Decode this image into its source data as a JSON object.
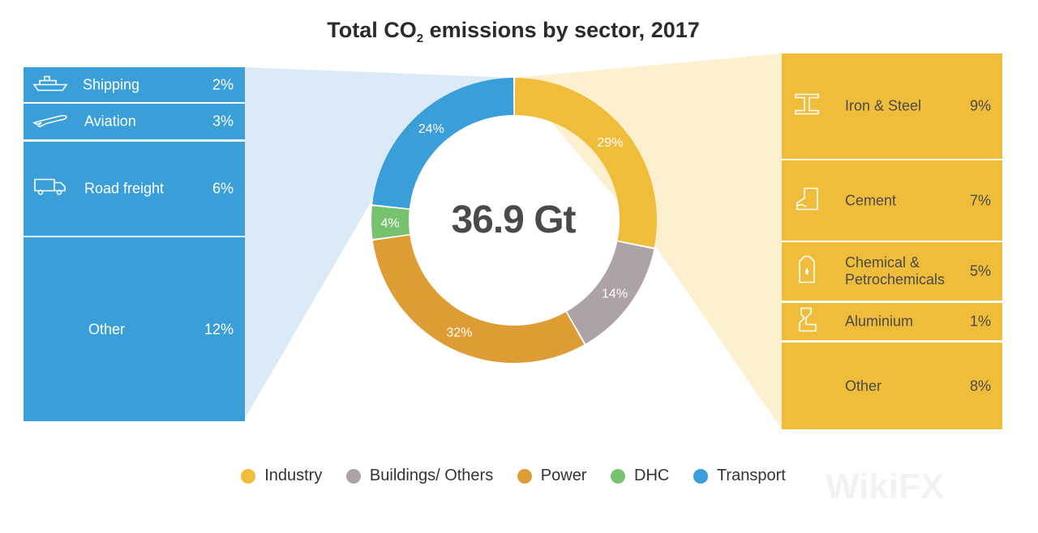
{
  "title_main": "Total CO",
  "title_sub": "2",
  "title_rest": " emissions by sector, 2017",
  "center_value": "36.9 Gt",
  "colors": {
    "industry": "#f0bd3a",
    "buildings": "#ada3a6",
    "power": "#de9c35",
    "dhc": "#76c26e",
    "transport": "#3a9fd9",
    "transport_light": "#daeaf6",
    "industry_light": "#fcf0cf"
  },
  "chart_data": {
    "type": "pie",
    "categories": [
      "Industry",
      "Buildings/ Others",
      "Power",
      "DHC",
      "Transport"
    ],
    "values": [
      29,
      14,
      32,
      4,
      24
    ],
    "labels": [
      "29%",
      "14%",
      "32%",
      "4%",
      "24%"
    ],
    "total": "36.9 Gt",
    "transport_breakdown": [
      {
        "name": "Shipping",
        "value": "2%",
        "icon": "ship-icon"
      },
      {
        "name": "Aviation",
        "value": "3%",
        "icon": "airplane-icon"
      },
      {
        "name": "Road freight",
        "value": "6%",
        "icon": "truck-icon"
      },
      {
        "name": "Other",
        "value": "12%",
        "icon": ""
      }
    ],
    "industry_breakdown": [
      {
        "name": "Iron & Steel",
        "value": "9%",
        "icon": "steel-beam-icon"
      },
      {
        "name": "Cement",
        "value": "7%",
        "icon": "cement-icon"
      },
      {
        "name": "Chemical & Petrochemicals",
        "value": "5%",
        "icon": "chemical-canister-icon"
      },
      {
        "name": "Aluminium",
        "value": "1%",
        "icon": "aluminium-icon"
      },
      {
        "name": "Other",
        "value": "8%",
        "icon": ""
      }
    ]
  },
  "legend": [
    "Industry",
    "Buildings/ Others",
    "Power",
    "DHC",
    "Transport"
  ],
  "watermark": "WikiFX"
}
